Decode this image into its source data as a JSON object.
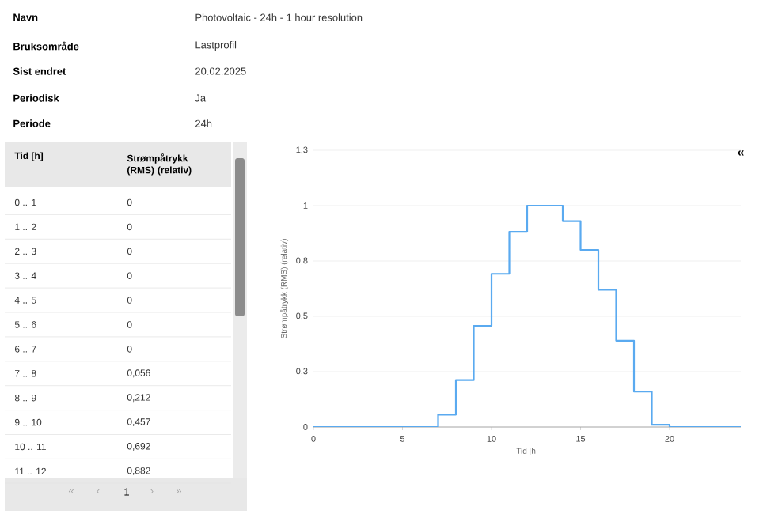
{
  "chart_data": {
    "type": "step",
    "xlabel": "Tid [h]",
    "ylabel": "Strømpåtrykk (RMS) (relativ)",
    "x": [
      0,
      1,
      2,
      3,
      4,
      5,
      6,
      7,
      8,
      9,
      10,
      11,
      12,
      13,
      14,
      15,
      16,
      17,
      18,
      19,
      20,
      21,
      22,
      23,
      24
    ],
    "values": [
      0,
      0,
      0,
      0,
      0,
      0,
      0,
      0.056,
      0.212,
      0.457,
      0.692,
      0.882,
      1,
      1,
      0.93,
      0.8,
      0.62,
      0.39,
      0.16,
      0.01,
      0,
      0,
      0,
      0,
      0
    ],
    "color": "#5aaaf0",
    "marker": "none",
    "line_style": "solid",
    "grid": "y",
    "xlim": [
      0,
      24
    ],
    "xticks": [
      0,
      5,
      10,
      15,
      20
    ],
    "ylim": [
      0,
      1.25
    ],
    "yticks": [
      0,
      {
        "value": 0.25,
        "label": "0,3"
      },
      {
        "value": 0.5,
        "label": "0,5"
      },
      {
        "value": 0.75,
        "label": "0,8"
      },
      1,
      {
        "value": 1.25,
        "label": "1,3"
      }
    ],
    "annotations": [
      "Navn",
      "Photovoltaic - 24h - 1 hour resolution",
      "Bruksområde",
      "Lastprofil",
      "Sist endret",
      "20.02.2025",
      "Periodisk",
      "Ja",
      "Periode",
      "24h",
      "Tid [h]",
      "Strømpåtrykk (RMS) (relativ)",
      "0 .. 1",
      "1 .. 2",
      "2 .. 3",
      "3 .. 4",
      "4 .. 5",
      "5 .. 6",
      "6 .. 7",
      "7 .. 8",
      "8 .. 9",
      "9 .. 10",
      "10 .. 11",
      "11 .. 12",
      "«",
      "‹",
      "1",
      "›",
      "»",
      "«",
      "0",
      "0",
      "0",
      "0",
      "0",
      "0",
      "0",
      "0,056",
      "0,212",
      "0,457",
      "0,692",
      "0,882"
    ]
  }
}
